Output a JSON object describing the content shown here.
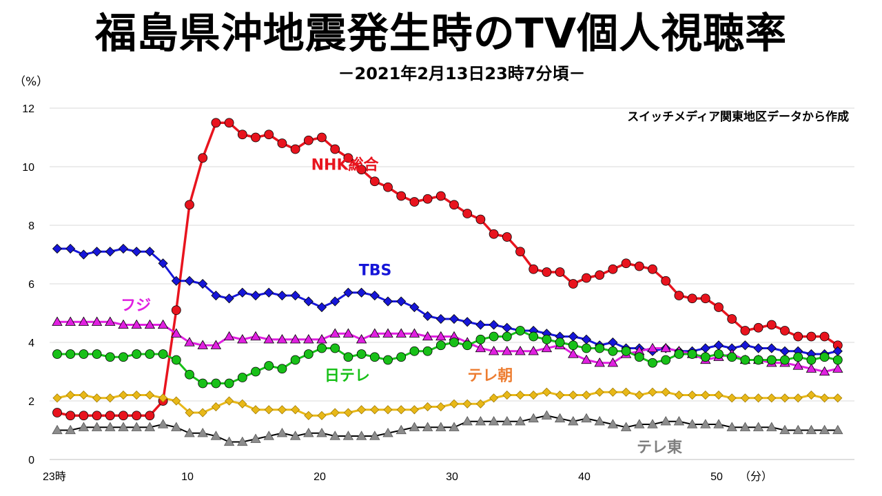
{
  "title": "福島県沖地震発生時のTV個人視聴率",
  "subtitle": "－2021年2月13日23時7分頃－",
  "unit_label": "（%）",
  "source_note": "スイッチメディア関東地区データから作成",
  "chart_data": {
    "type": "line",
    "title": "福島県沖地震発生時のTV個人視聴率",
    "subtitle": "－2021年2月13日23時7分頃－",
    "ylabel": "（%）",
    "xlabel": "（分）",
    "ylim": [
      0,
      12
    ],
    "xlim": [
      0,
      58
    ],
    "yticks": [
      0,
      2,
      4,
      6,
      8,
      10,
      12
    ],
    "xticks": [
      {
        "value": 0,
        "label": "23時"
      },
      {
        "value": 10,
        "label": "10"
      },
      {
        "value": 20,
        "label": "20"
      },
      {
        "value": 30,
        "label": "30"
      },
      {
        "value": 40,
        "label": "40"
      },
      {
        "value": 50,
        "label": "50"
      }
    ],
    "grid": true,
    "x": [
      0,
      1,
      2,
      3,
      4,
      5,
      6,
      7,
      8,
      9,
      10,
      11,
      12,
      13,
      14,
      15,
      16,
      17,
      18,
      19,
      20,
      21,
      22,
      23,
      24,
      25,
      26,
      27,
      28,
      29,
      30,
      31,
      32,
      33,
      34,
      35,
      36,
      37,
      38,
      39,
      40,
      41,
      42,
      43,
      44,
      45,
      46,
      47,
      48,
      49,
      50,
      51,
      52,
      53,
      54,
      55,
      56,
      57,
      58,
      59
    ],
    "series": [
      {
        "name": "NHK総合",
        "color": "#e8141e",
        "marker": "circle",
        "values": [
          1.6,
          1.5,
          1.5,
          1.5,
          1.5,
          1.5,
          1.5,
          1.5,
          2.0,
          5.1,
          8.7,
          10.3,
          11.5,
          11.5,
          11.1,
          11.0,
          11.1,
          10.8,
          10.6,
          10.9,
          11.0,
          10.6,
          10.3,
          9.9,
          9.5,
          9.3,
          9.0,
          8.8,
          8.9,
          9.0,
          8.7,
          8.4,
          8.2,
          7.7,
          7.6,
          7.1,
          6.5,
          6.4,
          6.4,
          6.0,
          6.2,
          6.3,
          6.5,
          6.7,
          6.6,
          6.5,
          6.1,
          5.6,
          5.5,
          5.5,
          5.2,
          4.8,
          4.4,
          4.5,
          4.6,
          4.4,
          4.2,
          4.2,
          4.2,
          3.9
        ]
      },
      {
        "name": "TBS",
        "color": "#1616d8",
        "marker": "diamond",
        "values": [
          7.2,
          7.2,
          7.0,
          7.1,
          7.1,
          7.2,
          7.1,
          7.1,
          6.7,
          6.1,
          6.1,
          6.0,
          5.6,
          5.5,
          5.7,
          5.6,
          5.7,
          5.6,
          5.6,
          5.4,
          5.2,
          5.4,
          5.7,
          5.7,
          5.6,
          5.4,
          5.4,
          5.2,
          4.9,
          4.8,
          4.8,
          4.7,
          4.6,
          4.6,
          4.5,
          4.4,
          4.4,
          4.3,
          4.2,
          4.2,
          4.1,
          3.9,
          4.0,
          3.8,
          3.8,
          3.7,
          3.8,
          3.7,
          3.7,
          3.8,
          3.9,
          3.8,
          3.9,
          3.8,
          3.8,
          3.7,
          3.7,
          3.6,
          3.6,
          3.7
        ]
      },
      {
        "name": "フジ",
        "color": "#e020e0",
        "marker": "triangle",
        "values": [
          4.7,
          4.7,
          4.7,
          4.7,
          4.7,
          4.6,
          4.6,
          4.6,
          4.6,
          4.3,
          4.0,
          3.9,
          3.9,
          4.2,
          4.1,
          4.2,
          4.1,
          4.1,
          4.1,
          4.1,
          4.1,
          4.3,
          4.3,
          4.1,
          4.3,
          4.3,
          4.3,
          4.3,
          4.2,
          4.2,
          4.2,
          4.0,
          3.8,
          3.7,
          3.7,
          3.7,
          3.7,
          3.8,
          3.9,
          3.6,
          3.4,
          3.3,
          3.3,
          3.6,
          3.7,
          3.8,
          3.8,
          3.7,
          3.6,
          3.4,
          3.5,
          3.6,
          3.4,
          3.4,
          3.3,
          3.3,
          3.2,
          3.1,
          3.0,
          3.1
        ]
      },
      {
        "name": "日テレ",
        "color": "#18c018",
        "marker": "circle",
        "values": [
          3.6,
          3.6,
          3.6,
          3.6,
          3.5,
          3.5,
          3.6,
          3.6,
          3.6,
          3.4,
          2.9,
          2.6,
          2.6,
          2.6,
          2.8,
          3.0,
          3.2,
          3.1,
          3.4,
          3.6,
          3.8,
          3.8,
          3.5,
          3.6,
          3.5,
          3.4,
          3.5,
          3.7,
          3.7,
          3.9,
          4.0,
          3.9,
          4.1,
          4.2,
          4.2,
          4.4,
          4.2,
          4.1,
          4.0,
          3.9,
          3.8,
          3.8,
          3.7,
          3.7,
          3.5,
          3.3,
          3.4,
          3.6,
          3.6,
          3.5,
          3.6,
          3.5,
          3.4,
          3.4,
          3.4,
          3.4,
          3.5,
          3.4,
          3.5,
          3.4
        ]
      },
      {
        "name": "テレ朝",
        "color": "#e8b818",
        "marker": "diamond",
        "values": [
          2.1,
          2.2,
          2.2,
          2.1,
          2.1,
          2.2,
          2.2,
          2.2,
          2.1,
          2.0,
          1.6,
          1.6,
          1.8,
          2.0,
          1.9,
          1.7,
          1.7,
          1.7,
          1.7,
          1.5,
          1.5,
          1.6,
          1.6,
          1.7,
          1.7,
          1.7,
          1.7,
          1.7,
          1.8,
          1.8,
          1.9,
          1.9,
          1.9,
          2.1,
          2.2,
          2.2,
          2.2,
          2.3,
          2.2,
          2.2,
          2.2,
          2.3,
          2.3,
          2.3,
          2.2,
          2.3,
          2.3,
          2.2,
          2.2,
          2.2,
          2.2,
          2.1,
          2.1,
          2.1,
          2.1,
          2.1,
          2.1,
          2.2,
          2.1,
          2.1
        ]
      },
      {
        "name": "テレ東",
        "color": "#8c8c8c",
        "marker": "triangle",
        "values": [
          1.0,
          1.0,
          1.1,
          1.1,
          1.1,
          1.1,
          1.1,
          1.1,
          1.2,
          1.1,
          0.9,
          0.9,
          0.8,
          0.6,
          0.6,
          0.7,
          0.8,
          0.9,
          0.8,
          0.9,
          0.9,
          0.8,
          0.8,
          0.8,
          0.8,
          0.9,
          1.0,
          1.1,
          1.1,
          1.1,
          1.1,
          1.3,
          1.3,
          1.3,
          1.3,
          1.3,
          1.4,
          1.5,
          1.4,
          1.3,
          1.4,
          1.3,
          1.2,
          1.1,
          1.2,
          1.2,
          1.3,
          1.3,
          1.2,
          1.2,
          1.2,
          1.1,
          1.1,
          1.1,
          1.1,
          1.0,
          1.0,
          1.0,
          1.0,
          1.0
        ]
      }
    ],
    "series_labels": [
      {
        "text": "NHK総合",
        "color": "#e8141e",
        "x": 19.2,
        "y": 9.9
      },
      {
        "text": "TBS",
        "color": "#1616d8",
        "x": 22.8,
        "y": 6.3
      },
      {
        "text": "フジ",
        "color": "#e020e0",
        "x": 4.8,
        "y": 5.1
      },
      {
        "text": "日テレ",
        "color": "#18c018",
        "x": 20.2,
        "y": 2.7
      },
      {
        "text": "テレ朝",
        "color": "#ed7d31",
        "x": 31.0,
        "y": 2.7
      },
      {
        "text": "テレ東",
        "color": "#7f7f7f",
        "x": 43.8,
        "y": 0.25
      }
    ]
  }
}
